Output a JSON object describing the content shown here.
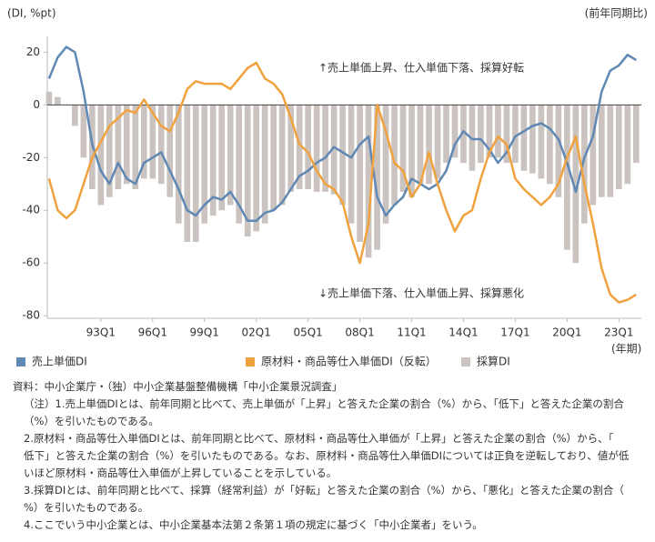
{
  "chart_data": {
    "type": "combo",
    "y_axis_label": "(DI, %pt)",
    "y_axis_label_right": "(前年同期比)",
    "x_axis_label": "(年期)",
    "annotations": [
      "↑売上単価上昇、仕入単価下落、採算好転",
      "↓売上単価下落、仕入単価上昇、採算悪化"
    ],
    "xlim": [
      1989.9,
      2024.3
    ],
    "xticks": [
      {
        "value": 1993,
        "label": "93Q1"
      },
      {
        "value": 1996,
        "label": "96Q1"
      },
      {
        "value": 1999,
        "label": "99Q1"
      },
      {
        "value": 2002,
        "label": "02Q1"
      },
      {
        "value": 2005,
        "label": "05Q1"
      },
      {
        "value": 2008,
        "label": "08Q1"
      },
      {
        "value": 2011,
        "label": "11Q1"
      },
      {
        "value": 2014,
        "label": "14Q1"
      },
      {
        "value": 2017,
        "label": "17Q1"
      },
      {
        "value": 2020,
        "label": "20Q1"
      },
      {
        "value": 2023,
        "label": "23Q1"
      }
    ],
    "ylim": [
      -81,
      26
    ],
    "yticks": [
      20,
      0,
      -20,
      -40,
      -60,
      -80
    ],
    "x": [
      1990,
      1990.5,
      1991,
      1991.5,
      1992,
      1992.5,
      1993,
      1993.5,
      1994,
      1994.5,
      1995,
      1995.5,
      1996,
      1996.5,
      1997,
      1997.5,
      1998,
      1998.5,
      1999,
      1999.5,
      2000,
      2000.5,
      2001,
      2001.5,
      2002,
      2002.5,
      2003,
      2003.5,
      2004,
      2004.5,
      2005,
      2005.5,
      2006,
      2006.5,
      2007,
      2007.5,
      2008,
      2008.5,
      2009,
      2009.5,
      2010,
      2010.5,
      2011,
      2011.5,
      2012,
      2012.5,
      2013,
      2013.5,
      2014,
      2014.5,
      2015,
      2015.5,
      2016,
      2016.5,
      2017,
      2017.5,
      2018,
      2018.5,
      2019,
      2019.5,
      2020,
      2020.5,
      2021,
      2021.5,
      2022,
      2022.5,
      2023,
      2023.5,
      2024
    ],
    "series": [
      {
        "name": "売上単価DI",
        "type": "line",
        "color": "#5f88b4",
        "values": [
          10,
          18,
          22,
          20,
          5,
          -15,
          -25,
          -30,
          -22,
          -28,
          -30,
          -22,
          -20,
          -18,
          -25,
          -32,
          -40,
          -42,
          -38,
          -35,
          -36,
          -33,
          -38,
          -44,
          -44,
          -41,
          -40,
          -37,
          -32,
          -27,
          -25,
          -22,
          -20,
          -16,
          -18,
          -20,
          -15,
          -12,
          -35,
          -42,
          -38,
          -35,
          -28,
          -30,
          -32,
          -30,
          -25,
          -15,
          -10,
          -13,
          -13,
          -17,
          -22,
          -18,
          -12,
          -10,
          -8,
          -7,
          -9,
          -13,
          -22,
          -33,
          -20,
          -12,
          5,
          13,
          15,
          19,
          17
        ]
      },
      {
        "name": "原材料・商品等仕入単価DI（反転）",
        "type": "line",
        "color": "#f0a23e",
        "values": [
          -28,
          -40,
          -43,
          -40,
          -30,
          -20,
          -14,
          -8,
          -5,
          -2,
          -3,
          2,
          -3,
          -8,
          -10,
          -3,
          6,
          9,
          8,
          8,
          8,
          6,
          10,
          14,
          16,
          10,
          8,
          4,
          -5,
          -15,
          -18,
          -25,
          -30,
          -32,
          -37,
          -50,
          -60,
          -45,
          0,
          -10,
          -22,
          -25,
          -35,
          -30,
          -18,
          -30,
          -40,
          -48,
          -42,
          -40,
          -28,
          -18,
          -12,
          -15,
          -28,
          -32,
          -35,
          -38,
          -35,
          -30,
          -20,
          -12,
          -30,
          -45,
          -62,
          -72,
          -75,
          -74,
          -72
        ]
      },
      {
        "name": "採算DI",
        "type": "bar",
        "color": "#cbc3bf",
        "values": [
          5,
          3,
          0,
          -8,
          -20,
          -32,
          -38,
          -35,
          -32,
          -30,
          -32,
          -28,
          -28,
          -30,
          -35,
          -45,
          -52,
          -52,
          -45,
          -42,
          -40,
          -38,
          -45,
          -50,
          -48,
          -45,
          -40,
          -38,
          -33,
          -32,
          -32,
          -33,
          -33,
          -34,
          -38,
          -45,
          -52,
          -58,
          -55,
          -45,
          -38,
          -33,
          -35,
          -30,
          -30,
          -28,
          -22,
          -20,
          -22,
          -25,
          -22,
          -20,
          -20,
          -22,
          -22,
          -25,
          -26,
          -28,
          -30,
          -35,
          -55,
          -60,
          -45,
          -38,
          -35,
          -35,
          -32,
          -30,
          -22
        ]
      }
    ],
    "notes": [
      "資料：中小企業庁・（独）中小企業基盤整備機構「中小企業景況調査」",
      "（注）1.売上単価DIとは、前年同期と比べて、売上単価が「上昇」と答えた企業の割合（%）から、「低下」と答えた企業の割合",
      "（%）を引いたものである。",
      "2.原材料・商品等仕入単価DIとは、前年同期と比べて、原材料・商品等仕入単価が「上昇」と答えた企業の割合（%）から、「",
      "低下」と答えた企業の割合（%）を引いたものである。なお、原材料・商品等仕入単価DIについては正負を逆転しており、値が低",
      "いほど原材料・商品等仕入単価が上昇していることを示している。",
      "3.採算DIとは、前年同期と比べて、採算（経常利益）が「好転」と答えた企業の割合（%）から、「悪化」と答えた企業の割合（",
      "%）を引いたものである。",
      "4.ここでいう中小企業とは、中小企業基本法第２条第１項の規定に基づく「中小企業者」をいう。"
    ]
  }
}
